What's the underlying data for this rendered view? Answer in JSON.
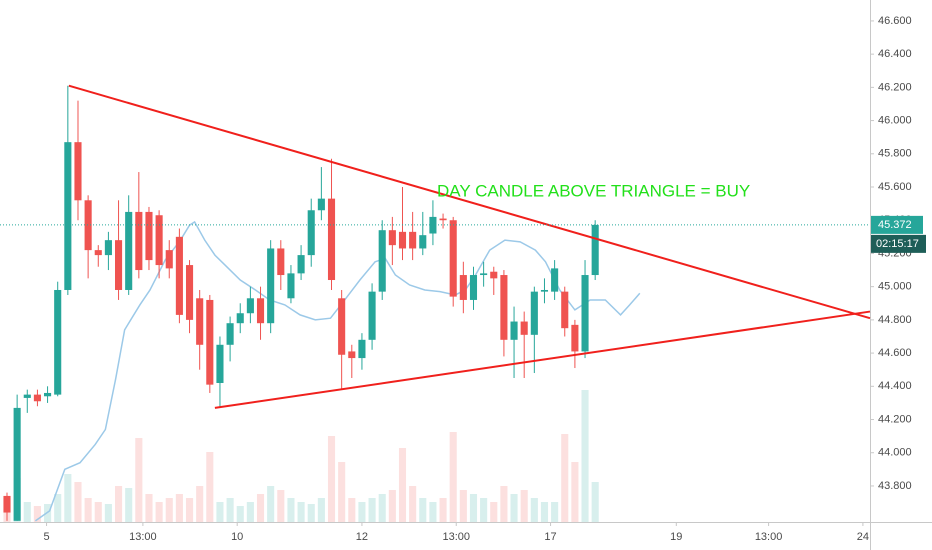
{
  "chart_data": {
    "type": "candlestick",
    "annotation": "DAY CANDLE ABOVE TRIANGLE = BUY",
    "annotation_color": "#22e01a",
    "up_color": "#26a69a",
    "down_color": "#ef5350",
    "x": [
      0,
      1,
      2,
      3,
      4,
      5,
      6,
      7,
      8,
      9,
      10,
      11,
      12,
      13,
      14,
      15,
      16,
      17,
      18,
      19,
      20,
      21,
      22,
      23,
      24,
      25,
      26,
      27,
      28,
      29,
      30,
      31,
      32,
      33,
      34,
      35,
      36,
      37,
      38,
      39,
      40,
      41,
      42,
      43,
      44,
      45,
      46,
      47,
      48,
      49,
      50,
      51,
      52,
      53,
      54,
      55,
      56,
      57,
      58
    ],
    "open": [
      43.74,
      43.59,
      44.33,
      44.35,
      44.34,
      44.35,
      44.98,
      45.87,
      45.52,
      45.22,
      45.19,
      45.28,
      44.98,
      45.45,
      45.45,
      45.43,
      45.22,
      45.3,
      45.13,
      44.93,
      44.92,
      44.42,
      44.65,
      44.78,
      44.84,
      44.93,
      44.78,
      45.23,
      44.93,
      45.08,
      45.19,
      45.46,
      45.53,
      44.93,
      44.61,
      44.57,
      44.68,
      44.97,
      45.34,
      45.33,
      45.33,
      45.23,
      45.32,
      45.41,
      45.4,
      45.07,
      44.92,
      45.07,
      45.09,
      45.07,
      44.68,
      44.79,
      44.71,
      44.97,
      44.97,
      44.97,
      44.77,
      44.61,
      45.07
    ],
    "high": [
      43.76,
      44.35,
      44.38,
      44.38,
      44.4,
      45.03,
      46.21,
      46.12,
      45.55,
      45.25,
      45.33,
      45.52,
      45.55,
      45.69,
      45.48,
      45.46,
      45.28,
      45.35,
      45.16,
      44.98,
      44.95,
      44.7,
      44.82,
      44.9,
      45.0,
      45.0,
      45.28,
      45.28,
      45.13,
      45.25,
      45.53,
      45.72,
      45.77,
      44.98,
      44.65,
      44.72,
      45.02,
      45.4,
      45.42,
      45.6,
      45.45,
      45.45,
      45.52,
      45.44,
      45.42,
      45.15,
      45.12,
      45.15,
      45.12,
      45.1,
      44.88,
      44.85,
      45.0,
      45.05,
      45.16,
      45.0,
      44.8,
      45.16,
      45.4
    ],
    "low": [
      43.59,
      43.59,
      44.24,
      44.28,
      44.3,
      44.34,
      44.95,
      45.4,
      45.05,
      45.12,
      45.1,
      44.92,
      44.95,
      45.05,
      45.1,
      45.05,
      45.05,
      44.78,
      44.72,
      44.5,
      44.36,
      44.27,
      44.55,
      44.72,
      44.78,
      44.68,
      44.72,
      44.98,
      44.9,
      45.04,
      45.12,
      45.4,
      44.98,
      44.38,
      44.45,
      44.5,
      44.62,
      44.92,
      45.13,
      45.16,
      45.16,
      45.19,
      45.25,
      45.35,
      44.88,
      44.84,
      44.86,
      45.0,
      44.95,
      44.58,
      44.45,
      44.45,
      44.48,
      44.9,
      44.92,
      44.7,
      44.51,
      44.57,
      45.04
    ],
    "close": [
      43.64,
      44.27,
      44.35,
      44.31,
      44.36,
      44.98,
      45.87,
      45.52,
      45.22,
      45.19,
      45.28,
      44.98,
      45.45,
      45.1,
      45.16,
      45.13,
      45.11,
      44.83,
      44.8,
      44.65,
      44.41,
      44.65,
      44.78,
      44.84,
      44.93,
      44.78,
      45.23,
      45.07,
      45.08,
      45.19,
      45.46,
      45.53,
      45.04,
      44.59,
      44.57,
      44.68,
      44.97,
      45.34,
      45.25,
      45.23,
      45.23,
      45.31,
      45.42,
      45.4,
      44.94,
      44.92,
      45.07,
      45.08,
      45.05,
      44.68,
      44.79,
      44.71,
      44.97,
      44.98,
      45.11,
      44.75,
      44.61,
      45.07,
      45.372
    ],
    "volume": {
      "values": [
        12,
        22,
        10,
        8,
        9,
        14,
        24,
        20,
        12,
        10,
        9,
        18,
        17,
        42,
        14,
        10,
        12,
        14,
        12,
        18,
        35,
        10,
        12,
        8,
        10,
        14,
        18,
        16,
        12,
        10,
        9,
        12,
        43,
        30,
        12,
        10,
        12,
        14,
        16,
        37,
        18,
        12,
        10,
        12,
        45,
        16,
        14,
        12,
        10,
        18,
        14,
        16,
        12,
        10,
        10,
        44,
        30,
        66,
        20
      ],
      "ylim": [
        0,
        100
      ]
    },
    "ma": {
      "color": "#9cc9e8",
      "x": [
        2.8,
        4.2,
        5.7,
        7.2,
        8.7,
        9.7,
        10.7,
        11.6,
        13.1,
        14.1,
        15.6,
        17.1,
        18.0,
        18.5,
        19.5,
        20.5,
        21.5,
        23.0,
        24.5,
        25.9,
        27.4,
        28.9,
        30.4,
        31.9,
        33.3,
        34.8,
        36.3,
        37.3,
        38.3,
        39.7,
        41.2,
        42.7,
        44.2,
        45.2,
        46.2,
        47.6,
        49.1,
        50.6,
        52.1,
        53.1,
        54.5,
        56.0,
        57.5,
        59.0,
        60.5,
        61.4,
        62.4
      ],
      "values": [
        43.59,
        43.65,
        43.9,
        43.94,
        44.05,
        44.14,
        44.44,
        44.74,
        44.89,
        44.98,
        45.16,
        45.28,
        45.37,
        45.39,
        45.28,
        45.19,
        45.13,
        45.04,
        44.98,
        44.92,
        44.89,
        44.83,
        44.8,
        44.81,
        44.92,
        45.04,
        45.15,
        45.17,
        45.07,
        45.01,
        44.98,
        44.97,
        44.95,
        44.98,
        45.07,
        45.22,
        45.28,
        45.27,
        45.22,
        45.15,
        44.98,
        44.86,
        44.92,
        44.92,
        44.83,
        44.89,
        44.96
      ]
    },
    "trendlines": {
      "color": "#f0201c",
      "lines": [
        {
          "x": [
            6.1,
            85.1
          ],
          "values": [
            46.21,
            44.81
          ]
        },
        {
          "x": [
            20.5,
            85.1
          ],
          "values": [
            44.27,
            44.85
          ]
        }
      ]
    },
    "last_price": 45.372,
    "countdown": "02:15:17",
    "ylim": [
      43.583,
      46.726
    ],
    "yticks": [
      {
        "value": 43.8,
        "label": "43.800"
      },
      {
        "value": 44.0,
        "label": "44.000"
      },
      {
        "value": 44.2,
        "label": "44.200"
      },
      {
        "value": 44.4,
        "label": "44.400"
      },
      {
        "value": 44.6,
        "label": "44.600"
      },
      {
        "value": 44.8,
        "label": "44.800"
      },
      {
        "value": 45.0,
        "label": "45.000"
      },
      {
        "value": 45.2,
        "label": "45.200"
      },
      {
        "value": 45.4,
        "label": "45.400"
      },
      {
        "value": 45.6,
        "label": "45.600"
      },
      {
        "value": 45.8,
        "label": "45.800"
      },
      {
        "value": 46.0,
        "label": "46.000"
      },
      {
        "value": 46.2,
        "label": "46.200"
      },
      {
        "value": 46.4,
        "label": "46.400"
      },
      {
        "value": 46.6,
        "label": "46.600"
      }
    ],
    "xlim": [
      -0.69,
      85.1
    ],
    "xticks": [
      {
        "value": 3.9,
        "label": "5"
      },
      {
        "value": 13.4,
        "label": "13:00"
      },
      {
        "value": 22.7,
        "label": "10"
      },
      {
        "value": 35.0,
        "label": "12"
      },
      {
        "value": 44.3,
        "label": "13:00"
      },
      {
        "value": 53.6,
        "label": "17"
      },
      {
        "value": 66.0,
        "label": "19"
      },
      {
        "value": 75.1,
        "label": "13:00"
      },
      {
        "value": 84.4,
        "label": "24"
      }
    ]
  }
}
